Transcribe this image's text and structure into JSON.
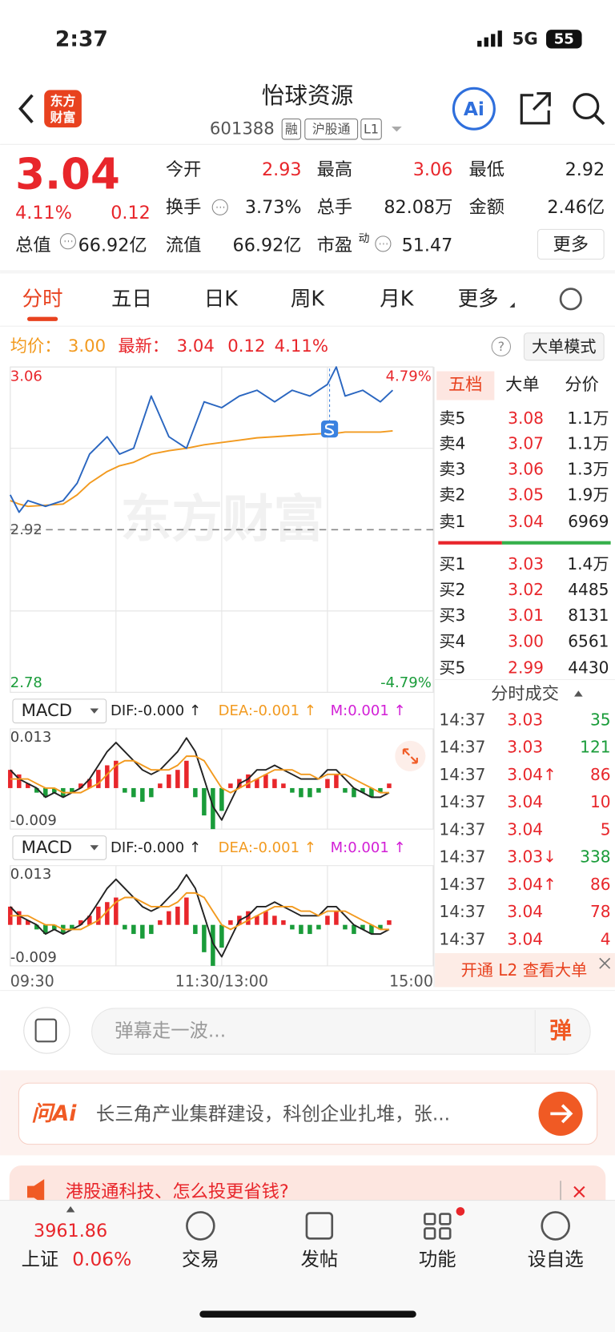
{
  "status_bar": {
    "time": "2:37",
    "network": "5G",
    "battery": "55"
  },
  "header": {
    "logo": [
      "东方",
      "财富"
    ],
    "title": "怡球资源",
    "code": "601388",
    "tags": [
      "融",
      "沪股通",
      "L1"
    ],
    "ai": "Ai"
  },
  "quote": {
    "price": "3.04",
    "change_pct": "4.11%",
    "change": "0.12",
    "fields": [
      {
        "label": "今开",
        "value": "2.93",
        "color": "#e8262b"
      },
      {
        "label": "最高",
        "value": "3.06",
        "color": "#e8262b"
      },
      {
        "label": "最低",
        "value": "2.92"
      },
      {
        "label": "换手",
        "value": "3.73%"
      },
      {
        "label": "总手",
        "value": "82.08万"
      },
      {
        "label": "金额",
        "value": "2.46亿"
      },
      {
        "label": "总值",
        "value": "66.92亿"
      },
      {
        "label": "流值",
        "value": "66.92亿"
      },
      {
        "label": "市盈",
        "sup": "动",
        "value": "51.47"
      }
    ],
    "more": "更多"
  },
  "tabs": {
    "items": [
      "分时",
      "五日",
      "日K",
      "周K",
      "月K",
      "更多"
    ],
    "active": 0
  },
  "info": {
    "avg_label": "均价：",
    "avg": "3.00",
    "last_label": "最新：",
    "last": "3.04",
    "change": "0.12",
    "change_pct": "4.11%",
    "help": "?",
    "mode": "大单模式"
  },
  "chart_data": [
    {
      "type": "line",
      "watermark": "东方财富",
      "x": [
        0,
        5,
        10,
        20,
        30,
        38,
        45,
        55,
        62,
        70,
        80,
        90,
        100,
        110,
        120,
        130,
        140,
        150,
        160,
        170,
        180,
        185,
        190,
        200,
        210,
        217
      ],
      "series": [
        {
          "color": "#2a66c0",
          "values": [
            2.95,
            2.935,
            2.945,
            2.94,
            2.945,
            2.96,
            2.985,
            3.0,
            2.985,
            2.99,
            3.035,
            3.0,
            2.99,
            3.03,
            3.025,
            3.035,
            3.04,
            3.03,
            3.04,
            3.035,
            3.045,
            3.06,
            3.035,
            3.04,
            3.03,
            3.04
          ]
        },
        {
          "color": "#f29a1f",
          "values": [
            2.945,
            2.942,
            2.94,
            2.941,
            2.942,
            2.95,
            2.96,
            2.97,
            2.975,
            2.978,
            2.985,
            2.988,
            2.99,
            2.993,
            2.995,
            2.997,
            2.999,
            3.0,
            3.001,
            3.002,
            3.003,
            3.003,
            3.004,
            3.004,
            3.004,
            3.005
          ]
        }
      ],
      "xlim": [
        0,
        240
      ],
      "xticks": [
        {
          "value": 0,
          "label": "09:30"
        },
        {
          "value": 120,
          "label": "11:30/13:00"
        },
        {
          "value": 240,
          "label": "15:00"
        }
      ],
      "ylim": [
        2.78,
        3.06
      ],
      "yticks": [
        2.78,
        2.92,
        3.06
      ],
      "y2lim": [
        -4.79,
        4.79
      ],
      "y2ticks": [
        {
          "value": -4.79,
          "label": "-4.79%"
        },
        {
          "value": 4.79,
          "label": "4.79%"
        }
      ]
    },
    {
      "type": "macd",
      "panels": 2,
      "title": "MACD",
      "labels": [
        {
          "text": "DIF:-0.000 ↑",
          "color": "#222222"
        },
        {
          "text": "DEA:-0.001 ↑",
          "color": "#f29a1f"
        },
        {
          "text": "M:0.001 ↑",
          "color": "#d21fd6"
        }
      ],
      "x": [
        0,
        5,
        10,
        15,
        20,
        25,
        30,
        35,
        40,
        45,
        50,
        55,
        60,
        65,
        70,
        75,
        80,
        85,
        90,
        95,
        100,
        105,
        110,
        115,
        120,
        125,
        130,
        135,
        140,
        145,
        150,
        155,
        160,
        165,
        170,
        175,
        180,
        185,
        190,
        195,
        200,
        205,
        210,
        215
      ],
      "histogram": [
        0.004,
        0.003,
        0.001,
        -0.001,
        -0.002,
        -0.001,
        -0.002,
        -0.001,
        0.001,
        0.002,
        0.004,
        0.005,
        0.006,
        -0.001,
        -0.002,
        -0.003,
        -0.002,
        0.001,
        0.003,
        0.004,
        0.006,
        -0.002,
        -0.006,
        -0.009,
        -0.005,
        0.001,
        0.002,
        0.003,
        0.002,
        0.003,
        0.002,
        0.001,
        -0.001,
        -0.002,
        -0.002,
        -0.001,
        0.002,
        0.003,
        -0.001,
        -0.002,
        -0.001,
        -0.002,
        -0.001,
        0.001
      ],
      "up_color": "#e8262b",
      "down_color": "#1a9c3a",
      "series": [
        {
          "color": "#222222",
          "values": [
            0.004,
            0.002,
            0.001,
            0,
            -0.002,
            -0.001,
            -0.002,
            -0.001,
            0,
            0.002,
            0.005,
            0.008,
            0.01,
            0.008,
            0.006,
            0.004,
            0.003,
            0.004,
            0.006,
            0.008,
            0.011,
            0.008,
            0.002,
            -0.004,
            -0.007,
            -0.003,
            0.001,
            0.002,
            0.004,
            0.004,
            0.005,
            0.004,
            0.003,
            0.002,
            0.002,
            0.002,
            0.004,
            0.004,
            0.002,
            0,
            -0.001,
            -0.002,
            -0.002,
            -0.001
          ]
        },
        {
          "color": "#f29a1f",
          "values": [
            0.002,
            0.002,
            0.002,
            0.001,
            0,
            0,
            -0.001,
            -0.001,
            -0.001,
            0,
            0.001,
            0.003,
            0.005,
            0.006,
            0.006,
            0.005,
            0.004,
            0.004,
            0.004,
            0.005,
            0.007,
            0.007,
            0.006,
            0.003,
            0,
            -0.001,
            0,
            0.001,
            0.002,
            0.003,
            0.004,
            0.004,
            0.004,
            0.003,
            0.003,
            0.002,
            0.003,
            0.003,
            0.003,
            0.002,
            0.001,
            0,
            -0.001,
            -0.001
          ]
        }
      ],
      "xlim": [
        0,
        240
      ],
      "ylim": [
        -0.009,
        0.013
      ],
      "yticks": [
        -0.009,
        0.013
      ]
    }
  ],
  "order_book": {
    "tabs": [
      "五档",
      "大单",
      "分价"
    ],
    "active": 0,
    "asks": [
      {
        "label": "卖5",
        "price": "3.08",
        "volume": "1.1万"
      },
      {
        "label": "卖4",
        "price": "3.07",
        "volume": "1.1万"
      },
      {
        "label": "卖3",
        "price": "3.06",
        "volume": "1.3万"
      },
      {
        "label": "卖2",
        "price": "3.05",
        "volume": "1.9万"
      },
      {
        "label": "卖1",
        "price": "3.04",
        "volume": "6969"
      }
    ],
    "bids": [
      {
        "label": "买1",
        "price": "3.03",
        "volume": "1.4万"
      },
      {
        "label": "买2",
        "price": "3.02",
        "volume": "4485"
      },
      {
        "label": "买3",
        "price": "3.01",
        "volume": "8131"
      },
      {
        "label": "买4",
        "price": "3.00",
        "volume": "6561"
      },
      {
        "label": "买5",
        "price": "2.99",
        "volume": "4430"
      }
    ]
  },
  "trades": {
    "title": "分时成交",
    "rows": [
      {
        "time": "14:37",
        "price": "3.03",
        "volume": "35",
        "volume_color": "#1a9c3a"
      },
      {
        "time": "14:37",
        "price": "3.03",
        "volume": "121",
        "volume_color": "#1a9c3a"
      },
      {
        "time": "14:37",
        "price": "3.04↑",
        "volume": "86",
        "volume_color": "#e8262b"
      },
      {
        "time": "14:37",
        "price": "3.04",
        "volume": "10",
        "volume_color": "#e8262b"
      },
      {
        "time": "14:37",
        "price": "3.04",
        "volume": "5",
        "volume_color": "#e8262b"
      },
      {
        "time": "14:37",
        "price": "3.03↓",
        "volume": "338",
        "volume_color": "#1a9c3a"
      },
      {
        "time": "14:37",
        "price": "3.04↑",
        "volume": "86",
        "volume_color": "#e8262b"
      },
      {
        "time": "14:37",
        "price": "3.04",
        "volume": "78",
        "volume_color": "#e8262b"
      },
      {
        "time": "14:37",
        "price": "3.04",
        "volume": "4",
        "volume_color": "#e8262b"
      }
    ],
    "l2": "开通 L2 查看大单"
  },
  "comment": {
    "placeholder": "弹幕走一波...",
    "button": "弹"
  },
  "ai_banner": {
    "logo": "问Ai",
    "text": "长三角产业集群建设，科创企业扎堆，张..."
  },
  "ad": "港股通科技、怎么投更省钱?",
  "bottom_nav": {
    "index_value": "3961.86",
    "index_name": "上证",
    "index_change": "0.06%",
    "items": [
      "交易",
      "发帖",
      "功能",
      "设自选"
    ]
  }
}
